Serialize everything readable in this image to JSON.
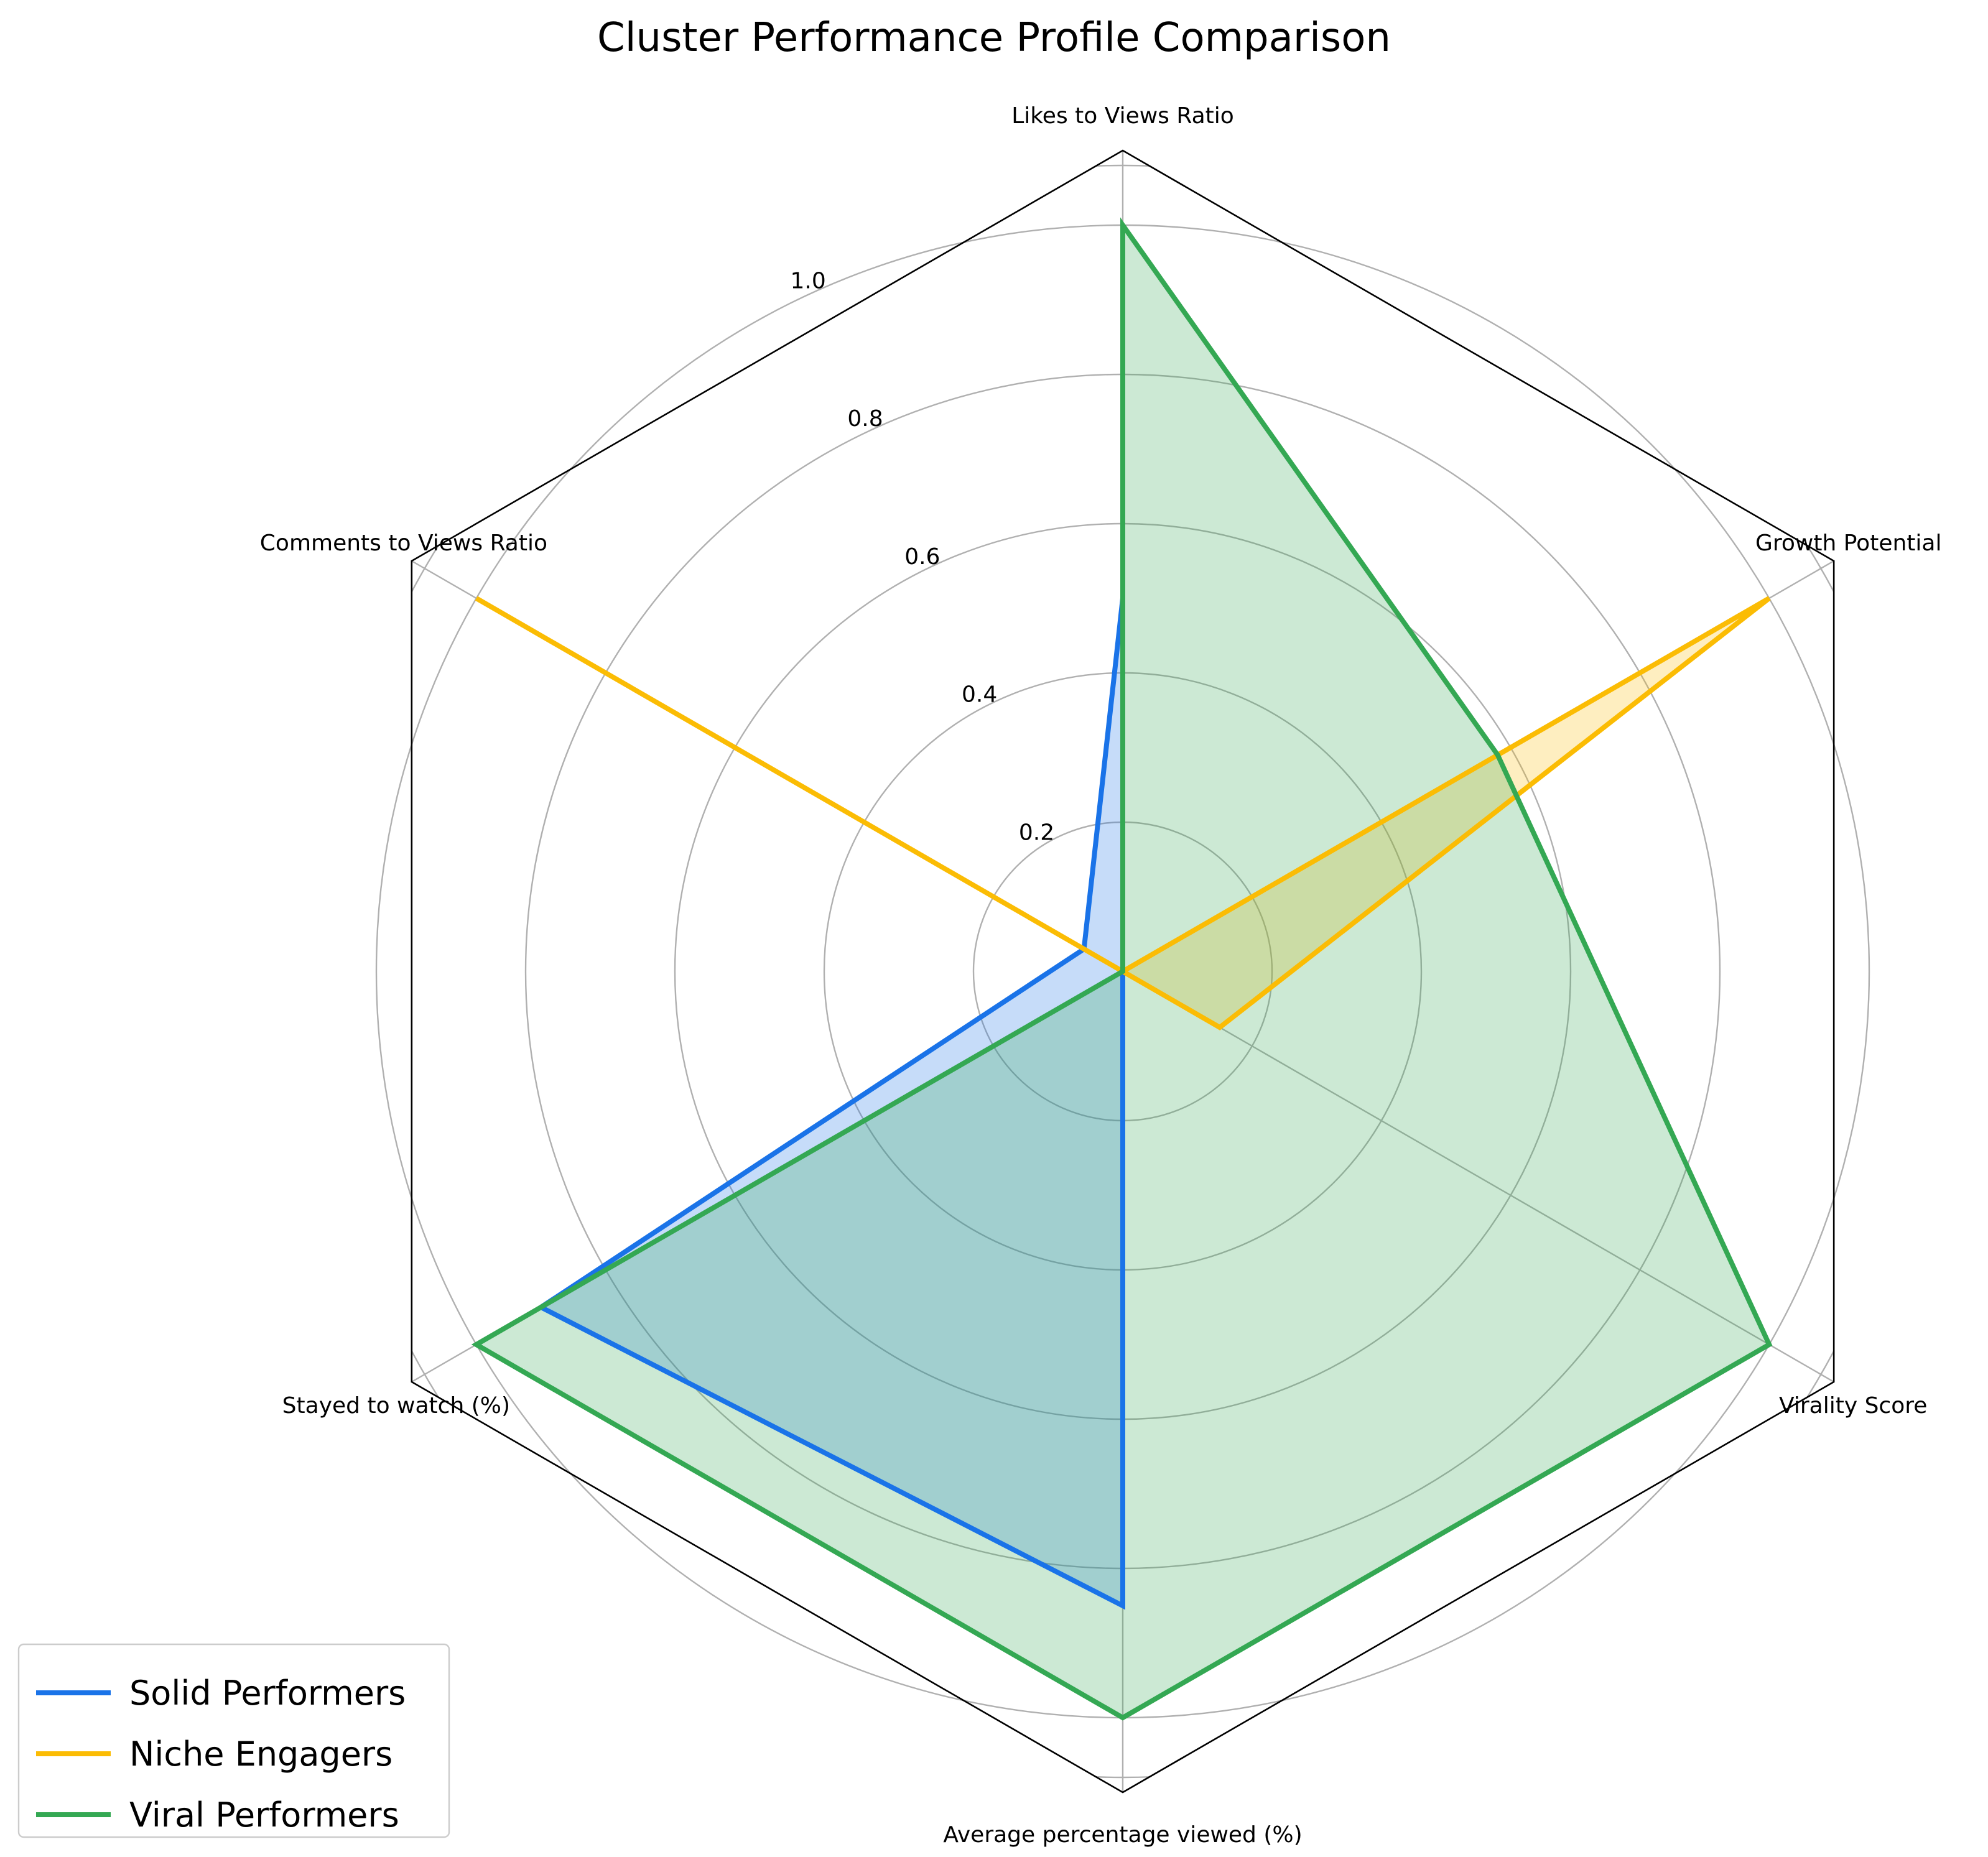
{
  "chart_data": {
    "type": "radar",
    "title": "Cluster Performance Profile Comparison",
    "axes": [
      "Likes to Views Ratio",
      "Growth Potential",
      "Virality Score",
      "Average percentage viewed (%)",
      "Stayed to watch (%)",
      "Comments to Views Ratio"
    ],
    "r_ticks": [
      "0.2",
      "0.4",
      "0.6",
      "0.8",
      "1.0"
    ],
    "r_tick_values": [
      0.2,
      0.4,
      0.6,
      0.8,
      1.0
    ],
    "rlim": [
      0,
      1.1
    ],
    "grid": true,
    "legend_position": "lower-left",
    "series": [
      {
        "name": "Solid Performers",
        "color": "#1a73e8",
        "values": [
          0.5,
          0.0,
          0.0,
          0.85,
          0.9,
          0.06
        ]
      },
      {
        "name": "Niche Engagers",
        "color": "#fbbc04",
        "values": [
          0.0,
          1.0,
          0.15,
          0.0,
          0.0,
          1.0
        ]
      },
      {
        "name": "Viral Performers",
        "color": "#34a853",
        "values": [
          1.0,
          0.58,
          1.0,
          1.0,
          1.0,
          0.0
        ]
      }
    ]
  }
}
